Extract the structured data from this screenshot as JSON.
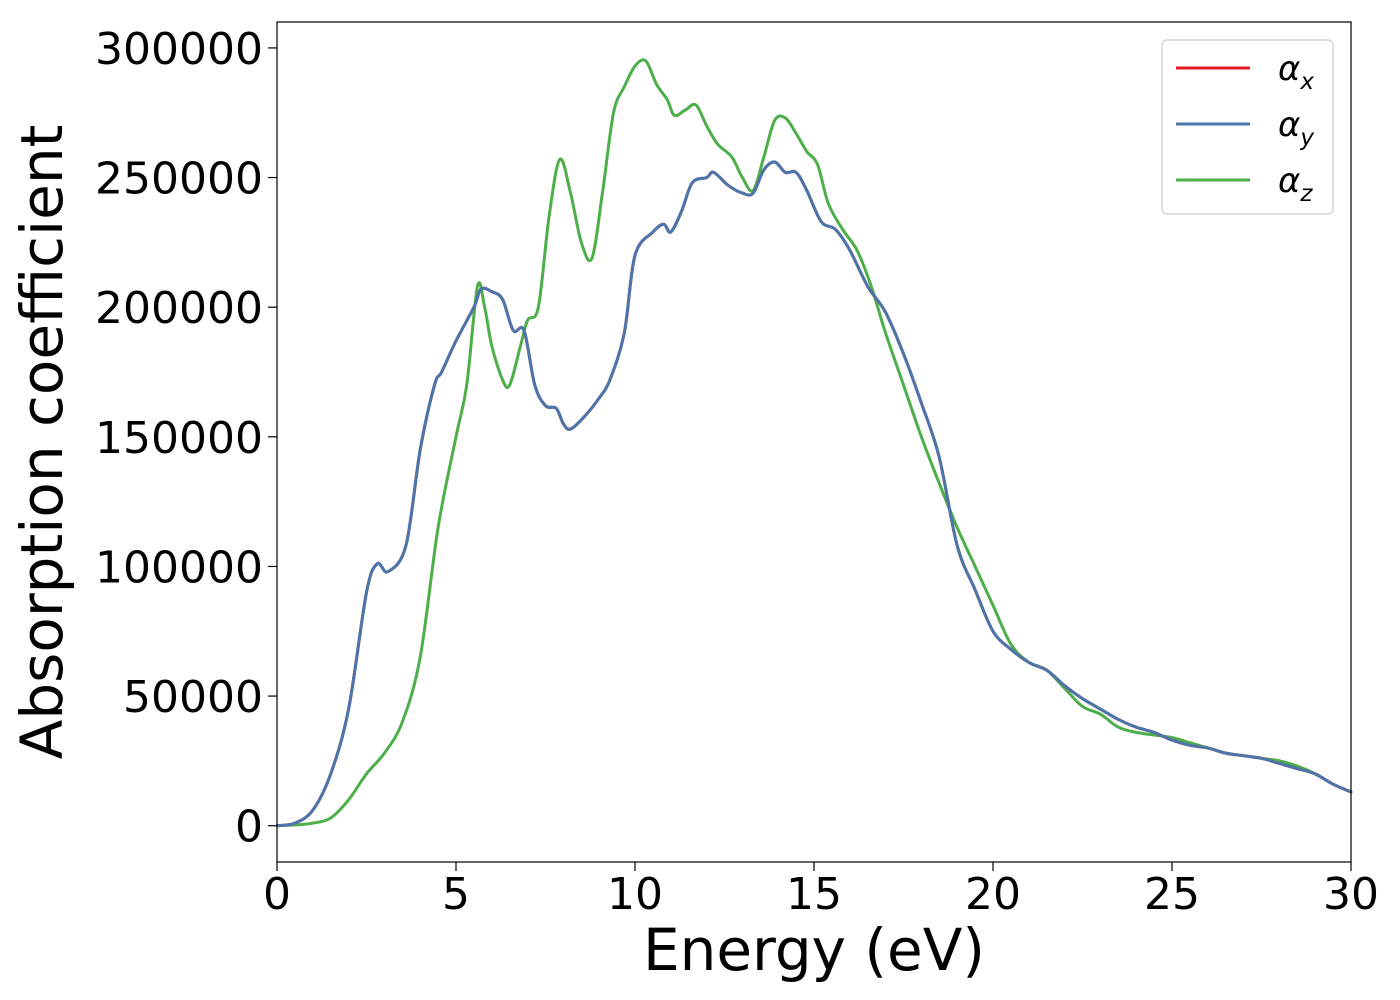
{
  "chart_data": {
    "type": "line",
    "xlabel": "Energy (eV)",
    "ylabel": "Absorption coefficient",
    "xlim": [
      0,
      30
    ],
    "ylim": [
      -14000,
      310000
    ],
    "xticks": [
      0,
      5,
      10,
      15,
      20,
      25,
      30
    ],
    "yticks": [
      0,
      50000,
      100000,
      150000,
      200000,
      250000,
      300000
    ],
    "grid": false,
    "legend_position": "top-right",
    "series": [
      {
        "name": "α_x",
        "legend_base": "α",
        "legend_sub": "x",
        "color": "#e41a1c",
        "x": [
          0,
          0.5,
          1,
          1.5,
          2,
          2.5,
          2.8,
          3.1,
          3.6,
          4,
          4.4,
          4.6,
          5,
          5.5,
          5.7,
          6,
          6.3,
          6.6,
          6.9,
          7.2,
          7.5,
          7.8,
          8,
          8.2,
          8.6,
          9,
          9.3,
          9.7,
          10,
          10.5,
          10.8,
          11,
          11.3,
          11.6,
          12,
          12.2,
          12.6,
          13,
          13.3,
          13.6,
          13.9,
          14.2,
          14.5,
          14.8,
          15.2,
          15.6,
          16,
          16.5,
          17,
          17.5,
          18,
          18.5,
          19,
          19.5,
          20,
          20.5,
          21,
          21.5,
          22,
          22.5,
          23,
          23.5,
          24,
          24.5,
          25,
          25.5,
          26,
          26.5,
          27,
          27.5,
          28,
          28.5,
          29,
          29.5,
          30
        ],
        "y": [
          0,
          1000,
          6000,
          20000,
          45000,
          90000,
          101000,
          98000,
          108000,
          145000,
          170000,
          175000,
          187000,
          200000,
          207000,
          206000,
          203000,
          191000,
          191000,
          170000,
          162000,
          161000,
          155000,
          153000,
          158000,
          165000,
          172000,
          190000,
          220000,
          229000,
          232000,
          229000,
          237000,
          248000,
          250000,
          252000,
          247000,
          244000,
          244000,
          253000,
          256000,
          252000,
          252000,
          245000,
          233000,
          230000,
          222000,
          208000,
          198000,
          182000,
          163000,
          142000,
          108000,
          91000,
          75000,
          68000,
          63000,
          60000,
          54000,
          49000,
          45000,
          41000,
          38000,
          36000,
          33000,
          31000,
          30000,
          28000,
          27000,
          26000,
          24000,
          22000,
          20000,
          16000,
          13000
        ]
      },
      {
        "name": "α_y",
        "legend_base": "α",
        "legend_sub": "y",
        "color": "#4a76ab",
        "x": [
          0,
          0.5,
          1,
          1.5,
          2,
          2.5,
          2.8,
          3.1,
          3.6,
          4,
          4.4,
          4.6,
          5,
          5.5,
          5.7,
          6,
          6.3,
          6.6,
          6.9,
          7.2,
          7.5,
          7.8,
          8,
          8.2,
          8.6,
          9,
          9.3,
          9.7,
          10,
          10.5,
          10.8,
          11,
          11.3,
          11.6,
          12,
          12.2,
          12.6,
          13,
          13.3,
          13.6,
          13.9,
          14.2,
          14.5,
          14.8,
          15.2,
          15.6,
          16,
          16.5,
          17,
          17.5,
          18,
          18.5,
          19,
          19.5,
          20,
          20.5,
          21,
          21.5,
          22,
          22.5,
          23,
          23.5,
          24,
          24.5,
          25,
          25.5,
          26,
          26.5,
          27,
          27.5,
          28,
          28.5,
          29,
          29.5,
          30
        ],
        "y": [
          0,
          1000,
          6000,
          20000,
          45000,
          90000,
          101000,
          98000,
          108000,
          145000,
          170000,
          175000,
          187000,
          200000,
          207000,
          206000,
          203000,
          191000,
          191000,
          170000,
          162000,
          161000,
          155000,
          153000,
          158000,
          165000,
          172000,
          190000,
          220000,
          229000,
          232000,
          229000,
          237000,
          248000,
          250000,
          252000,
          247000,
          244000,
          244000,
          253000,
          256000,
          252000,
          252000,
          245000,
          233000,
          230000,
          222000,
          208000,
          198000,
          182000,
          163000,
          142000,
          108000,
          91000,
          75000,
          68000,
          63000,
          60000,
          54000,
          49000,
          45000,
          41000,
          38000,
          36000,
          33000,
          31000,
          30000,
          28000,
          27000,
          26000,
          24000,
          22000,
          20000,
          16000,
          13000
        ]
      },
      {
        "name": "α_z",
        "legend_base": "α",
        "legend_sub": "z",
        "color": "#4daf4a",
        "x": [
          0,
          0.5,
          1,
          1.5,
          2,
          2.5,
          3,
          3.5,
          4,
          4.5,
          5,
          5.3,
          5.6,
          5.8,
          6,
          6.3,
          6.5,
          6.8,
          7,
          7.3,
          7.6,
          7.9,
          8.2,
          8.5,
          8.8,
          9.1,
          9.4,
          9.7,
          10,
          10.3,
          10.6,
          10.9,
          11.1,
          11.4,
          11.7,
          12,
          12.3,
          12.7,
          13,
          13.3,
          13.6,
          13.9,
          14.2,
          14.5,
          14.8,
          15.1,
          15.4,
          15.8,
          16.2,
          16.6,
          17,
          17.5,
          18,
          18.5,
          19,
          19.5,
          20,
          20.5,
          21,
          21.5,
          22,
          22.5,
          23,
          23.5,
          24,
          24.5,
          25,
          25.5,
          26,
          26.5,
          27,
          27.5,
          28,
          28.5,
          29,
          29.5,
          30
        ],
        "y": [
          0,
          300,
          1000,
          3000,
          10000,
          20000,
          28000,
          40000,
          65000,
          115000,
          150000,
          170000,
          208000,
          200000,
          185000,
          172000,
          170000,
          185000,
          195000,
          200000,
          235000,
          257000,
          244000,
          225000,
          219000,
          245000,
          275000,
          285000,
          293000,
          295000,
          286000,
          280000,
          274000,
          276000,
          278000,
          270000,
          263000,
          258000,
          250000,
          245000,
          258000,
          272000,
          273000,
          267000,
          260000,
          255000,
          240000,
          230000,
          222000,
          208000,
          190000,
          170000,
          150000,
          132000,
          115000,
          100000,
          85000,
          70000,
          63000,
          60000,
          53000,
          46000,
          43000,
          38000,
          36000,
          35000,
          34000,
          32000,
          30000,
          28000,
          27000,
          26000,
          25000,
          23000,
          20000,
          16000,
          13000
        ]
      }
    ]
  }
}
